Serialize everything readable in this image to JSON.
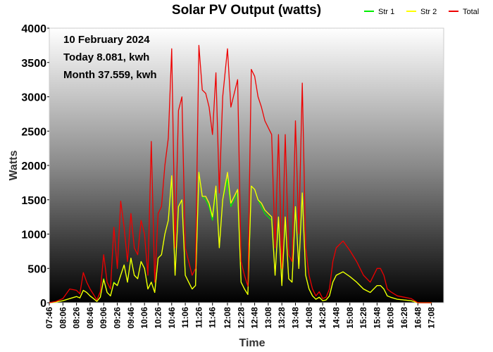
{
  "chart_data": {
    "type": "line",
    "title": "Solar PV Output (watts)",
    "xlabel": "Time",
    "ylabel": "Watts",
    "ylim": [
      0,
      4000
    ],
    "yticks": [
      "0",
      "500",
      "1000",
      "1500",
      "2000",
      "2500",
      "3000",
      "3500",
      "4000"
    ],
    "xtick_labels": [
      "07:46",
      "08:06",
      "08:26",
      "08:46",
      "09:06",
      "09:26",
      "09:46",
      "10:06",
      "10:26",
      "10:46",
      "11:06",
      "11:26",
      "11:46",
      "12:08",
      "12:28",
      "12:48",
      "13:08",
      "13:28",
      "13:48",
      "14:08",
      "14:28",
      "14:48",
      "15:08",
      "15:28",
      "15:48",
      "16:08",
      "16:28",
      "16:48",
      "17:08"
    ],
    "annotations": [
      "10 February 2024",
      "Today 8.081, kwh",
      "Month 37.559, kwh"
    ],
    "legend": {
      "placement": "top-right",
      "entries": [
        "Str 1",
        "Str 2",
        "Total"
      ]
    },
    "colors": {
      "Str 1": "#00ee00",
      "Str 2": "#ffff00",
      "Total": "#ee0000"
    },
    "x": [
      "07:46",
      "07:56",
      "08:06",
      "08:16",
      "08:26",
      "08:31",
      "08:36",
      "08:41",
      "08:46",
      "08:51",
      "08:56",
      "09:01",
      "09:06",
      "09:11",
      "09:16",
      "09:21",
      "09:26",
      "09:31",
      "09:36",
      "09:41",
      "09:46",
      "09:51",
      "09:56",
      "10:01",
      "10:06",
      "10:11",
      "10:16",
      "10:21",
      "10:26",
      "10:31",
      "10:36",
      "10:41",
      "10:46",
      "10:51",
      "10:56",
      "11:01",
      "11:06",
      "11:11",
      "11:16",
      "11:21",
      "11:26",
      "11:31",
      "11:36",
      "11:41",
      "11:46",
      "11:51",
      "11:56",
      "12:01",
      "12:08",
      "12:13",
      "12:18",
      "12:23",
      "12:28",
      "12:33",
      "12:38",
      "12:43",
      "12:48",
      "12:53",
      "12:58",
      "13:03",
      "13:08",
      "13:13",
      "13:18",
      "13:23",
      "13:28",
      "13:33",
      "13:38",
      "13:43",
      "13:48",
      "13:53",
      "13:58",
      "14:03",
      "14:08",
      "14:13",
      "14:18",
      "14:23",
      "14:28",
      "14:33",
      "14:38",
      "14:43",
      "14:48",
      "14:58",
      "15:08",
      "15:18",
      "15:28",
      "15:38",
      "15:48",
      "15:53",
      "15:58",
      "16:03",
      "16:08",
      "16:18",
      "16:28",
      "16:38",
      "16:48",
      "16:58",
      "17:08"
    ],
    "series": [
      {
        "name": "Str 1",
        "values": [
          0,
          10,
          30,
          60,
          90,
          70,
          180,
          150,
          100,
          60,
          20,
          80,
          350,
          150,
          100,
          300,
          250,
          400,
          550,
          300,
          650,
          400,
          350,
          600,
          500,
          200,
          300,
          150,
          650,
          700,
          1000,
          1200,
          1800,
          400,
          1400,
          1500,
          400,
          300,
          200,
          250,
          1900,
          1550,
          1500,
          1400,
          1200,
          1650,
          800,
          1500,
          1800,
          1400,
          1500,
          1600,
          300,
          200,
          120,
          1700,
          1650,
          1500,
          1400,
          1300,
          1250,
          1200,
          400,
          1200,
          250,
          1200,
          350,
          300,
          1400,
          500,
          1600,
          400,
          200,
          100,
          50,
          80,
          30,
          40,
          100,
          300,
          400,
          450,
          380,
          300,
          200,
          150,
          250,
          250,
          200,
          100,
          80,
          50,
          40,
          30,
          0,
          0,
          0
        ]
      },
      {
        "name": "Str 2",
        "values": [
          0,
          10,
          30,
          60,
          90,
          70,
          180,
          150,
          100,
          60,
          20,
          80,
          340,
          150,
          100,
          290,
          250,
          400,
          550,
          300,
          650,
          400,
          350,
          600,
          500,
          200,
          300,
          150,
          650,
          700,
          1000,
          1200,
          1850,
          400,
          1400,
          1500,
          400,
          300,
          200,
          250,
          1900,
          1550,
          1550,
          1450,
          1250,
          1700,
          800,
          1500,
          1900,
          1450,
          1550,
          1650,
          300,
          200,
          120,
          1700,
          1650,
          1500,
          1450,
          1350,
          1300,
          1250,
          400,
          1250,
          250,
          1250,
          350,
          300,
          1400,
          500,
          1600,
          400,
          200,
          100,
          50,
          80,
          30,
          40,
          100,
          300,
          400,
          450,
          380,
          300,
          200,
          150,
          250,
          250,
          200,
          100,
          80,
          50,
          40,
          30,
          0,
          0,
          0
        ]
      },
      {
        "name": "Total",
        "values": [
          0,
          20,
          60,
          200,
          180,
          130,
          440,
          300,
          200,
          120,
          40,
          160,
          700,
          300,
          200,
          1100,
          500,
          1480,
          1100,
          600,
          1300,
          800,
          700,
          1200,
          1000,
          400,
          2350,
          300,
          1300,
          1400,
          2000,
          2400,
          3700,
          800,
          2800,
          3000,
          800,
          600,
          400,
          500,
          3750,
          3100,
          3050,
          2850,
          2450,
          3350,
          1600,
          3000,
          3700,
          2850,
          3050,
          3250,
          600,
          400,
          240,
          3400,
          3300,
          3000,
          2850,
          2650,
          2550,
          2450,
          800,
          2450,
          500,
          2450,
          700,
          600,
          2650,
          1000,
          3200,
          800,
          400,
          200,
          100,
          160,
          60,
          80,
          200,
          600,
          800,
          900,
          760,
          600,
          400,
          300,
          500,
          500,
          400,
          200,
          160,
          100,
          80,
          60,
          0,
          0,
          0
        ]
      }
    ]
  }
}
